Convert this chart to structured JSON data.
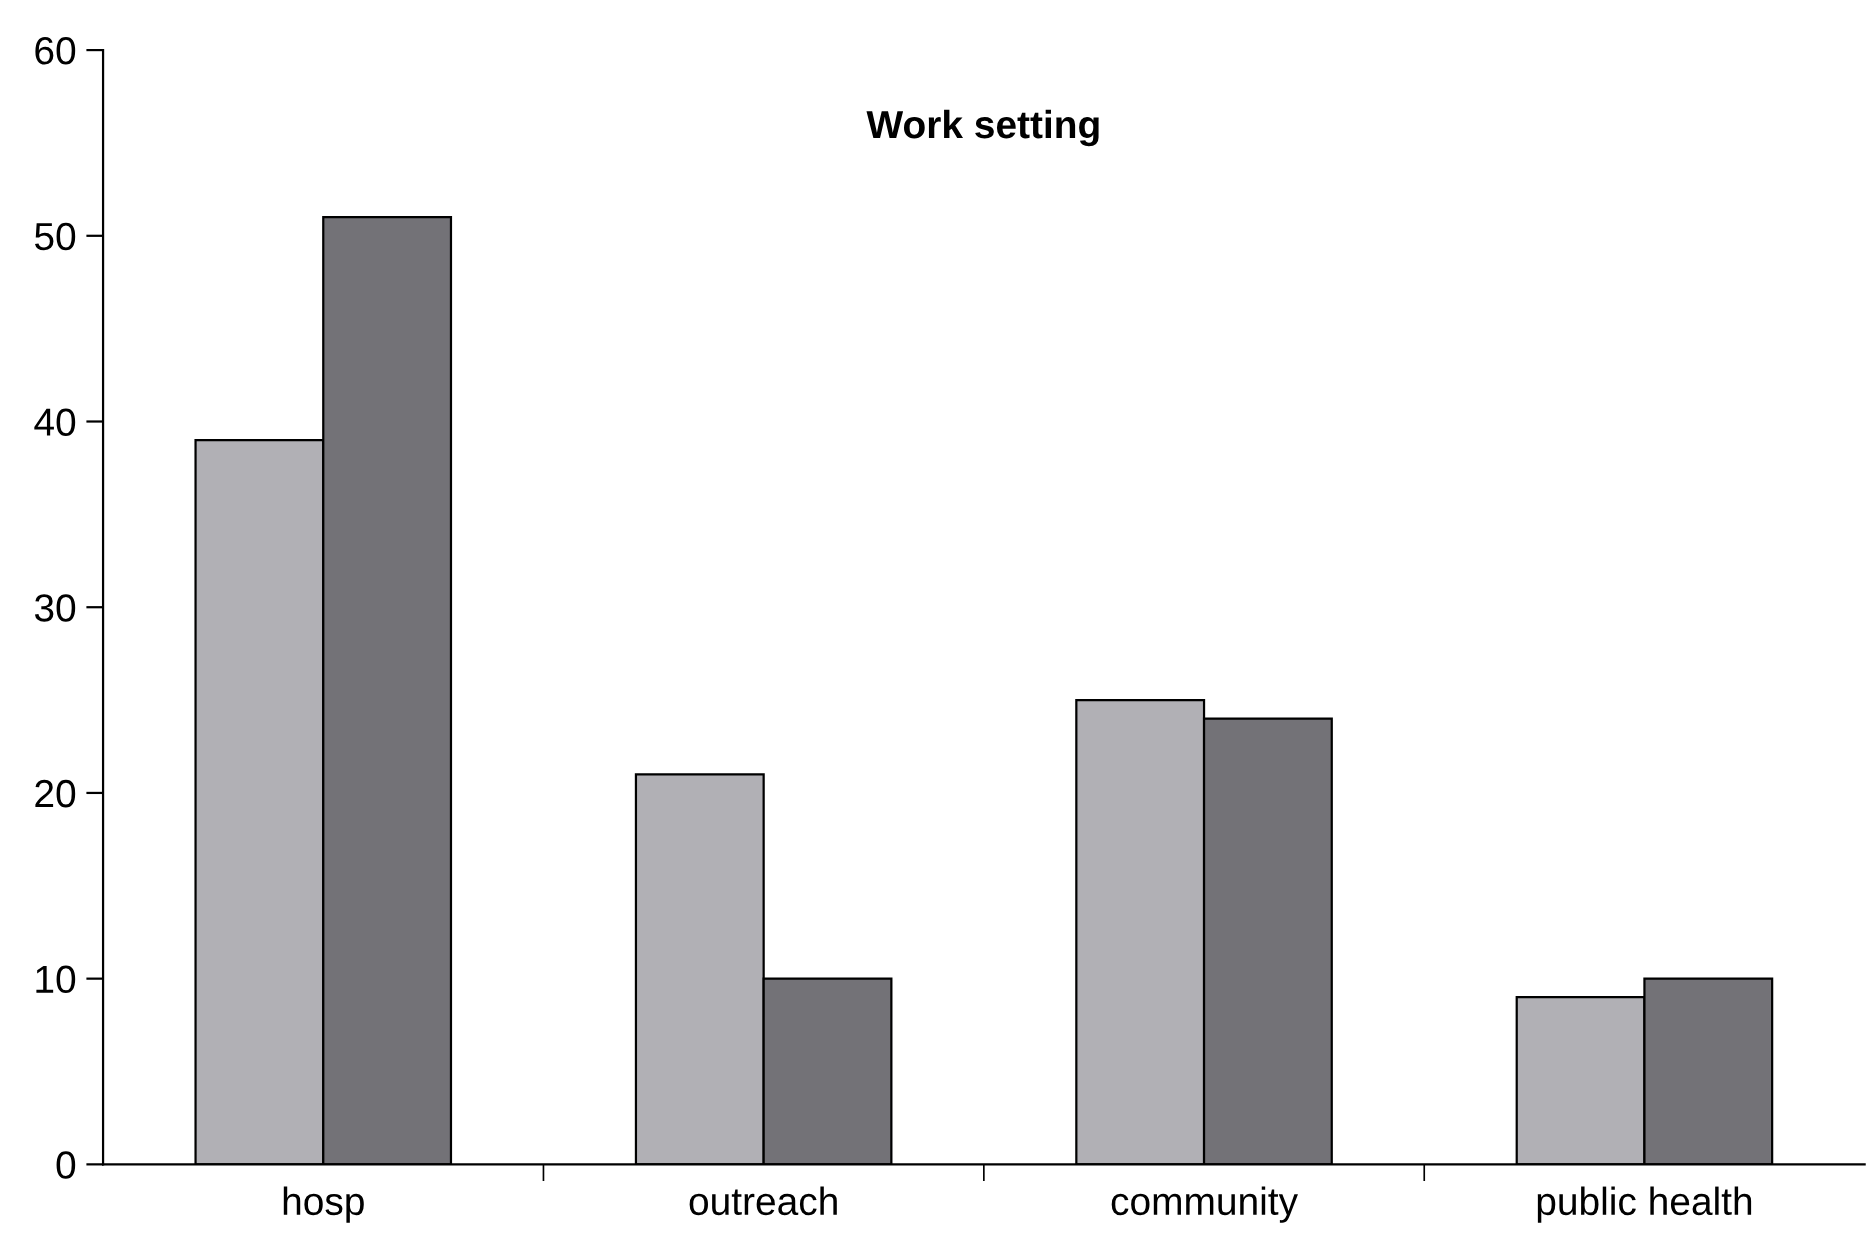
{
  "chart_data": {
    "type": "bar",
    "title": "Work setting",
    "categories": [
      "hosp",
      "outreach",
      "community",
      "public health"
    ],
    "series": [
      {
        "color": "#b1b0b5",
        "values": [
          39,
          21,
          25,
          9
        ]
      },
      {
        "color": "#737277",
        "values": [
          51,
          10,
          24,
          10
        ]
      }
    ],
    "ylim": [
      0,
      60
    ],
    "yticks": [
      0,
      10,
      20,
      30,
      40,
      50,
      60
    ],
    "grid": false,
    "legend": false
  }
}
